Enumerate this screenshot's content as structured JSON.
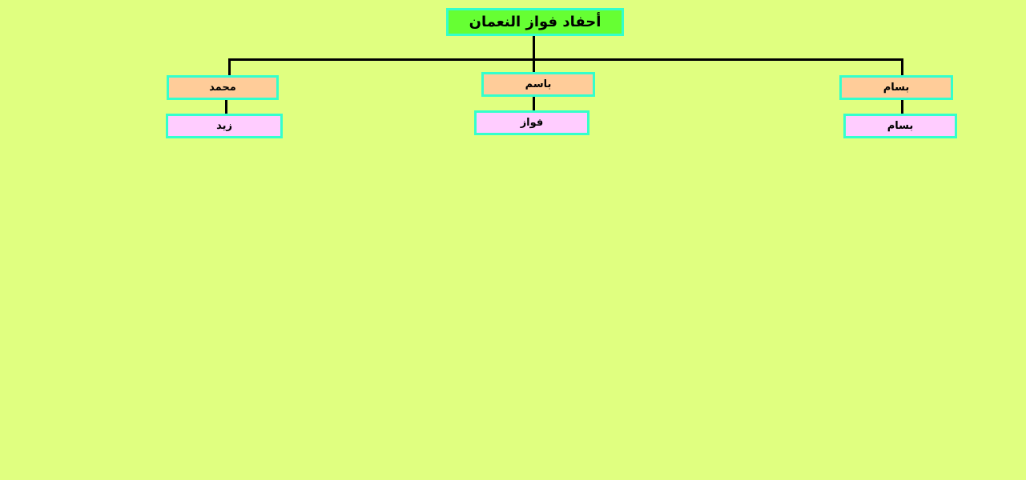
{
  "tree": {
    "root": {
      "label": "أحفاد فواز النعمان"
    },
    "branches": [
      {
        "parent": "محمد",
        "child": "زيد"
      },
      {
        "parent": "باسم",
        "child": "فواز"
      },
      {
        "parent": "بسام",
        "child": "بسام"
      }
    ]
  },
  "colors": {
    "background": "#e0ff80",
    "root_fill": "#66ff33",
    "parent_fill": "#ffcc99",
    "child_fill": "#ffccff",
    "box_border": "#33ffcc",
    "connector": "#000000"
  }
}
